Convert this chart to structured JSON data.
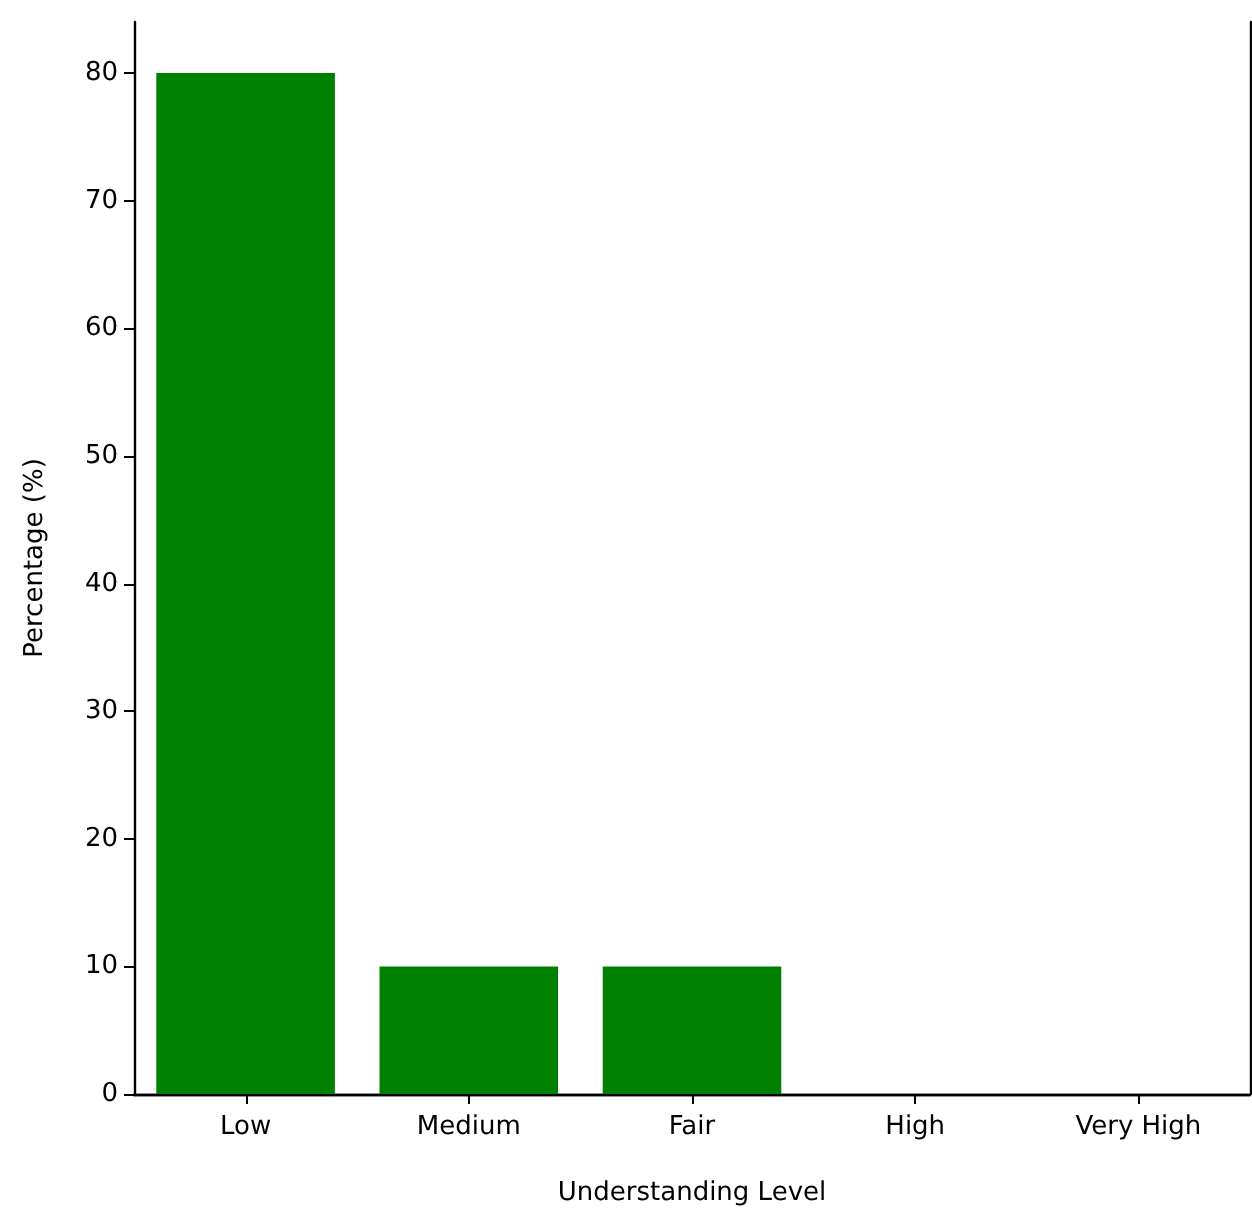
{
  "chart_data": {
    "type": "bar",
    "xlabel": "Understanding Level",
    "ylabel": "Percentage (%)",
    "categories": [
      "Low",
      "Medium",
      "Fair",
      "High",
      "Very High"
    ],
    "values": [
      80,
      10,
      10,
      0,
      0
    ],
    "color": "#008000",
    "ylim": [
      0,
      84
    ],
    "yticks": [
      0,
      10,
      20,
      30,
      40,
      50,
      60,
      70,
      80
    ],
    "grid": false
  }
}
